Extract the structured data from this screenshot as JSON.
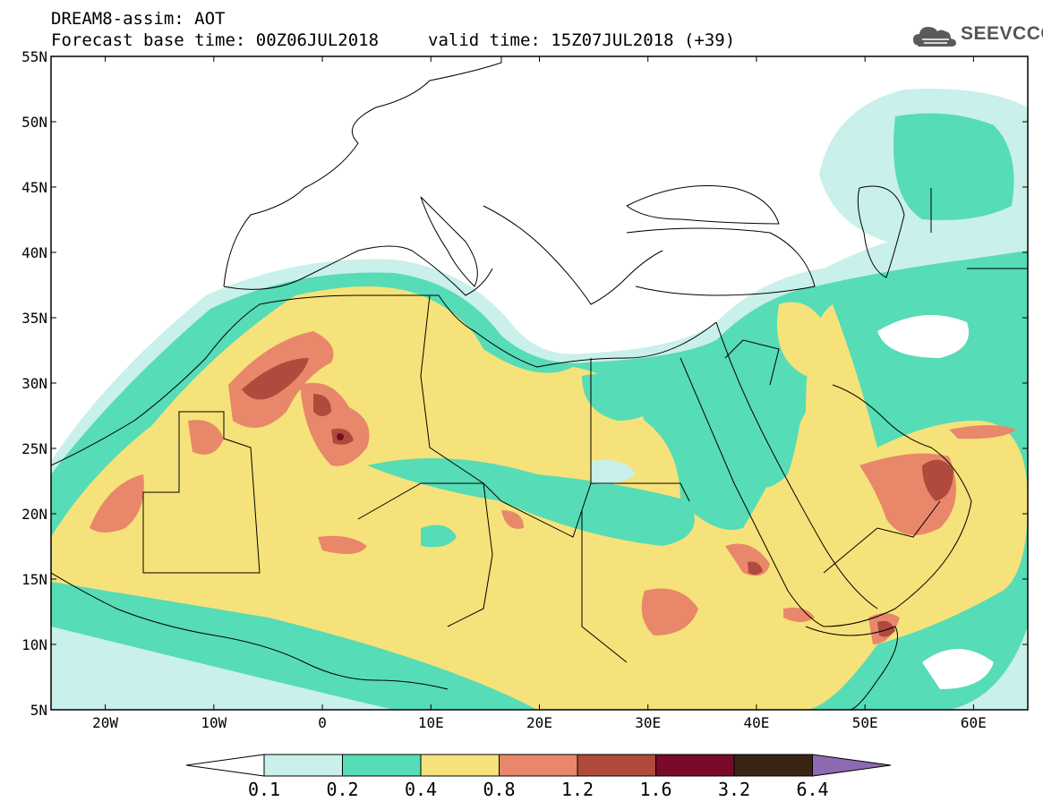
{
  "header": {
    "title_line1": "DREAM8-assim: AOT",
    "title_line2": "Forecast base time: 00Z06JUL2018",
    "valid_time": "valid time: 15Z07JUL2018 (+39)",
    "logo_text": "SEEVCCC"
  },
  "map": {
    "lat_labels": [
      "55N",
      "50N",
      "45N",
      "40N",
      "35N",
      "30N",
      "25N",
      "20N",
      "15N",
      "10N",
      "5N"
    ],
    "lon_labels": [
      "20W",
      "10W",
      "0",
      "10E",
      "20E",
      "30E",
      "40E",
      "50E",
      "60E"
    ],
    "lon_range": [
      -25,
      65
    ],
    "lat_range": [
      5,
      55
    ]
  },
  "legend": {
    "colors": [
      "#ffffff",
      "#c9f0ea",
      "#56dcb6",
      "#f6e27a",
      "#e8876a",
      "#b04a3c",
      "#7a0a2a",
      "#3a2414",
      "#8e6bb0"
    ],
    "labels": [
      "0.1",
      "0.2",
      "0.4",
      "0.8",
      "1.2",
      "1.6",
      "3.2",
      "6.4"
    ]
  }
}
